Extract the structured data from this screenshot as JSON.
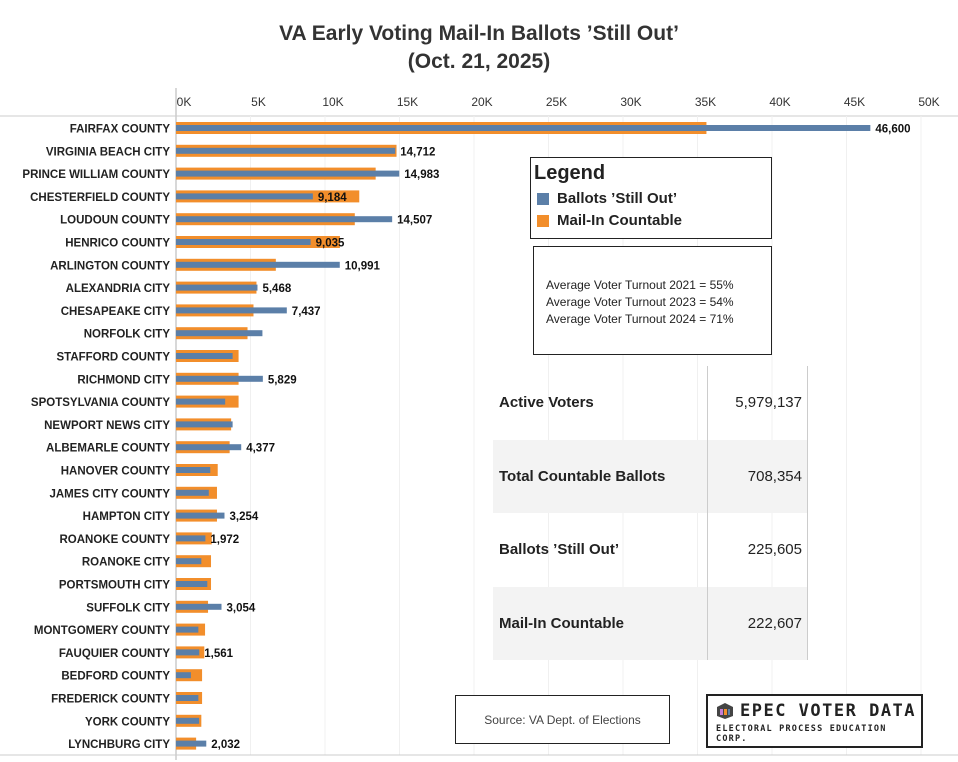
{
  "chart_data": {
    "type": "bar",
    "orientation": "horizontal",
    "title": "VA Early Voting Mail-In Ballots ’Still Out’",
    "subtitle": "(Oct. 21, 2025)",
    "xlim": [
      0,
      50000
    ],
    "x_ticks": [
      "0K",
      "5K",
      "10K",
      "15K",
      "20K",
      "25K",
      "30K",
      "35K",
      "40K",
      "45K",
      "50K"
    ],
    "grid": true,
    "categories": [
      "FAIRFAX COUNTY",
      "VIRGINIA BEACH CITY",
      "PRINCE WILLIAM COUNTY",
      "CHESTERFIELD COUNTY",
      "LOUDOUN COUNTY",
      "HENRICO COUNTY",
      "ARLINGTON COUNTY",
      "ALEXANDRIA CITY",
      "CHESAPEAKE CITY",
      "NORFOLK CITY",
      "STAFFORD COUNTY",
      "RICHMOND CITY",
      "SPOTSYLVANIA COUNTY",
      "NEWPORT NEWS CITY",
      "ALBEMARLE COUNTY",
      "HANOVER COUNTY",
      "JAMES CITY COUNTY",
      "HAMPTON CITY",
      "ROANOKE COUNTY",
      "ROANOKE CITY",
      "PORTSMOUTH CITY",
      "SUFFOLK CITY",
      "MONTGOMERY COUNTY",
      "FAUQUIER COUNTY",
      "BEDFORD COUNTY",
      "FREDERICK COUNTY",
      "YORK COUNTY",
      "LYNCHBURG CITY"
    ],
    "series": [
      {
        "name": "Mail-In Countable",
        "color": "#f28e2b",
        "values": [
          35600,
          14800,
          13400,
          12300,
          12000,
          11000,
          6700,
          5400,
          5200,
          4800,
          4200,
          4200,
          4200,
          3700,
          3600,
          2800,
          2750,
          2750,
          2400,
          2350,
          2350,
          2150,
          1950,
          1900,
          1750,
          1750,
          1700,
          1350
        ]
      },
      {
        "name": "Ballots ’Still Out’",
        "color": "#5b7fa8",
        "values": [
          46600,
          14712,
          14983,
          9184,
          14507,
          9035,
          10991,
          5468,
          7437,
          5800,
          3800,
          5829,
          3300,
          3800,
          4377,
          2300,
          2200,
          3254,
          1972,
          1700,
          2100,
          3054,
          1500,
          1561,
          1000,
          1500,
          1550,
          2032
        ]
      }
    ],
    "data_labels": [
      "46,600",
      "14,712",
      "14,983",
      "9,184",
      "14,507",
      "9,035",
      "10,991",
      "5,468",
      "7,437",
      "",
      "",
      "5,829",
      "",
      "",
      "4,377",
      "",
      "",
      "3,254",
      "1,972",
      "",
      "",
      "3,054",
      "",
      "1,561",
      "",
      "",
      "",
      "2,032"
    ]
  },
  "legend": {
    "title": "Legend",
    "items": [
      {
        "label": "Ballots ’Still Out’",
        "color": "#5b7fa8"
      },
      {
        "label": "Mail-In Countable",
        "color": "#f28e2b"
      }
    ]
  },
  "turnout": [
    "Average Voter Turnout 2021 = 55%",
    "Average Voter Turnout 2023 = 54%",
    "Average Voter Turnout 2024 = 71%"
  ],
  "stats": [
    {
      "label": "Active Voters",
      "value": "5,979,137"
    },
    {
      "label": "Total Countable Ballots",
      "value": "708,354"
    },
    {
      "label": "Ballots ’Still Out’",
      "value": "225,605"
    },
    {
      "label": "Mail-In Countable",
      "value": "222,607"
    }
  ],
  "source": "Source: VA Dept. of Elections",
  "logo": {
    "title": "EPEC VOTER DATA",
    "subtitle": "ELECTORAL PROCESS EDUCATION CORP."
  }
}
